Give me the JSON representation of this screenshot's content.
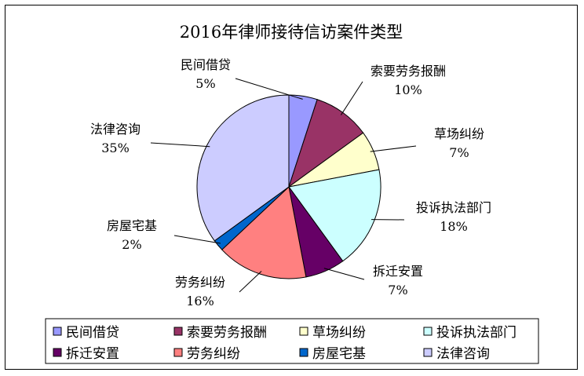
{
  "chart_data": {
    "type": "pie",
    "title": "2016年律师接待信访案件类型",
    "categories": [
      "民间借贷",
      "索要劳务报酬",
      "草场纠纷",
      "投诉执法部门",
      "拆迁安置",
      "劳务纠纷",
      "房屋宅基",
      "法律咨询"
    ],
    "values": [
      5,
      10,
      7,
      18,
      7,
      16,
      2,
      35
    ],
    "value_labels": [
      "5%",
      "10%",
      "7%",
      "18%",
      "7%",
      "16%",
      "2%",
      "35%"
    ],
    "colors": [
      "#9999ff",
      "#993366",
      "#ffffcc",
      "#ccffff",
      "#660066",
      "#ff8080",
      "#0066cc",
      "#ccccff"
    ],
    "legend_position": "bottom"
  }
}
